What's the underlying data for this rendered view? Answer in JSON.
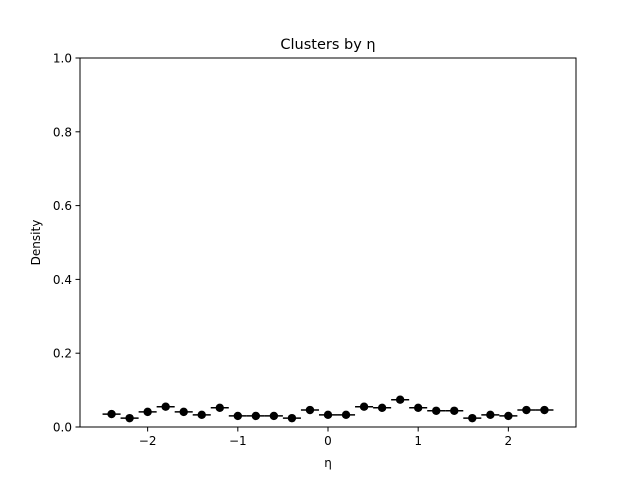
{
  "chart_data": {
    "type": "scatter",
    "title": "Clusters by η",
    "xlabel": "η",
    "ylabel": "Density",
    "xlim": [
      -2.75,
      2.75
    ],
    "ylim": [
      0.0,
      1.0
    ],
    "xticks": [
      -2,
      -1,
      0,
      1,
      2
    ],
    "xtick_labels": [
      "−2",
      "−1",
      "0",
      "1",
      "2"
    ],
    "yticks": [
      0.0,
      0.2,
      0.4,
      0.6,
      0.8,
      1.0
    ],
    "ytick_labels": [
      "0.0",
      "0.2",
      "0.4",
      "0.6",
      "0.8",
      "1.0"
    ],
    "grid": false,
    "bin_width": 0.2,
    "series": [
      {
        "x": [
          -2.4,
          -2.2,
          -2.0,
          -1.8,
          -1.6,
          -1.4,
          -1.2,
          -1.0,
          -0.8,
          -0.6,
          -0.4,
          -0.2,
          0.0,
          0.2,
          0.4,
          0.6,
          0.8,
          1.0,
          1.2,
          1.4,
          1.6,
          1.8,
          2.0,
          2.2,
          2.4
        ],
        "y": [
          0.035,
          0.024,
          0.041,
          0.055,
          0.041,
          0.033,
          0.052,
          0.03,
          0.03,
          0.03,
          0.024,
          0.046,
          0.033,
          0.033,
          0.055,
          0.052,
          0.074,
          0.052,
          0.044,
          0.044,
          0.024,
          0.033,
          0.03,
          0.046,
          0.046
        ],
        "yerr": [
          0.006,
          0.005,
          0.006,
          0.007,
          0.006,
          0.006,
          0.007,
          0.005,
          0.005,
          0.005,
          0.005,
          0.006,
          0.006,
          0.006,
          0.007,
          0.007,
          0.008,
          0.007,
          0.006,
          0.006,
          0.005,
          0.006,
          0.005,
          0.006,
          0.006
        ],
        "color": "#000000"
      }
    ]
  }
}
